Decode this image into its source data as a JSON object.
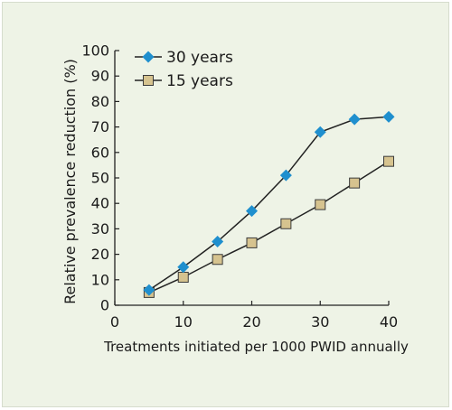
{
  "colors": {
    "background": "#eef3e6",
    "series_30": "#1f8fce",
    "series_15": "#d6c38f",
    "marker_edge_15": "#3b3b3b",
    "line": "#222222"
  },
  "chart_data": {
    "type": "line",
    "xlabel": "Treatments initiated per 1000 PWID annually",
    "ylabel": "Relative prevalence reduction (%)",
    "xlim": [
      0,
      40
    ],
    "ylim": [
      0,
      100
    ],
    "xticks": [
      "0",
      "10",
      "20",
      "30",
      "40"
    ],
    "yticks": [
      "0",
      "10",
      "20",
      "30",
      "40",
      "50",
      "60",
      "70",
      "80",
      "90",
      "100"
    ],
    "x": [
      5,
      10,
      15,
      20,
      25,
      30,
      35,
      40
    ],
    "grid": false,
    "legend_position": "top-left",
    "series": [
      {
        "name": "30 years",
        "marker": "diamond",
        "values": [
          6,
          15,
          25,
          37,
          51,
          68,
          73,
          74
        ]
      },
      {
        "name": "15 years",
        "marker": "square",
        "values": [
          5,
          11,
          18,
          24.5,
          32,
          39.5,
          48,
          56.5
        ]
      }
    ]
  }
}
